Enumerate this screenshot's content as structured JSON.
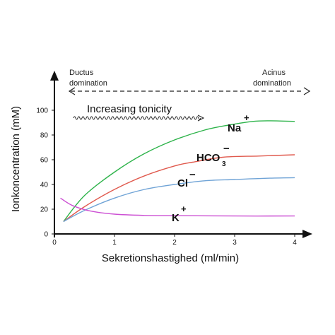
{
  "chart_data": {
    "type": "line",
    "xlabel": "Sekretionshastighed (ml/min)",
    "ylabel": "Ionkoncentration (mM)",
    "xlim": [
      0,
      4.2
    ],
    "ylim": [
      0,
      110
    ],
    "x_ticks": [
      "0",
      "1",
      "2",
      "3",
      "4"
    ],
    "y_ticks": [
      "0",
      "20",
      "40",
      "60",
      "80",
      "100"
    ],
    "grid": false,
    "series": [
      {
        "name": "Na+",
        "color": "#2db34a",
        "points": [
          [
            0.15,
            10
          ],
          [
            0.5,
            31
          ],
          [
            1.0,
            50
          ],
          [
            1.5,
            65
          ],
          [
            2.0,
            76
          ],
          [
            2.5,
            84
          ],
          [
            2.9,
            88
          ],
          [
            3.3,
            91
          ],
          [
            3.6,
            91.5
          ],
          [
            4.0,
            91
          ]
        ]
      },
      {
        "name": "HCO3-",
        "color": "#e05a4e",
        "points": [
          [
            0.15,
            10
          ],
          [
            0.5,
            22
          ],
          [
            1.0,
            36
          ],
          [
            1.5,
            47
          ],
          [
            2.0,
            55
          ],
          [
            2.3,
            58
          ],
          [
            2.8,
            62
          ],
          [
            3.4,
            63
          ],
          [
            4.0,
            64
          ]
        ]
      },
      {
        "name": "Cl-",
        "color": "#6fa3d6",
        "points": [
          [
            0.15,
            10
          ],
          [
            0.5,
            19
          ],
          [
            1.0,
            29
          ],
          [
            1.5,
            36
          ],
          [
            2.0,
            40
          ],
          [
            2.5,
            43
          ],
          [
            3.0,
            44
          ],
          [
            3.5,
            45
          ],
          [
            4.0,
            45.5
          ]
        ]
      },
      {
        "name": "K+",
        "color": "#cc4fd3",
        "points": [
          [
            0.1,
            29
          ],
          [
            0.3,
            23
          ],
          [
            0.6,
            18.5
          ],
          [
            1.0,
            16
          ],
          [
            1.5,
            15
          ],
          [
            2.0,
            14.8
          ],
          [
            3.0,
            14.5
          ],
          [
            4.0,
            14.5
          ]
        ]
      }
    ]
  },
  "labels": {
    "ductus_line1": "Ductus",
    "ductus_line2": "domination",
    "acinus_line1": "Acinus",
    "acinus_line2": "domination",
    "tonicity": "Increasing tonicity",
    "na": "Na",
    "na_sup": "+",
    "hco": "HCO",
    "hco_sub": "3",
    "hco_sup": "−",
    "cl": "Cl",
    "cl_sup": "−",
    "k": "K",
    "k_sup": "+"
  },
  "colors": {
    "axis": "#111111",
    "na": "#2db34a",
    "hco3": "#e05a4e",
    "cl": "#6fa3d6",
    "k": "#cc4fd3"
  }
}
